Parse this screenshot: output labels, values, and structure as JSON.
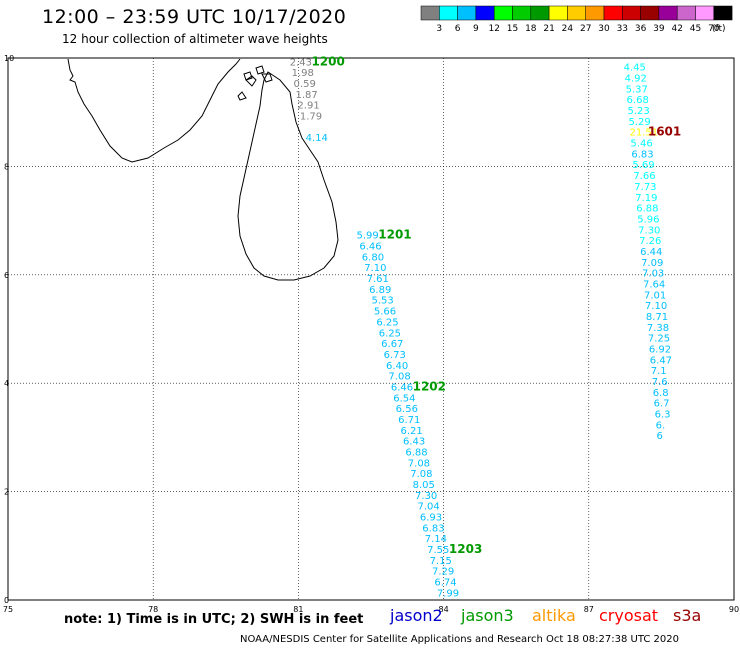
{
  "title": "12:00 – 23:59 UTC 10/17/2020",
  "subtitle": "12 hour collection of altimeter wave heights",
  "legend": {
    "unit": "(ft)",
    "colors": [
      "#808080",
      "#00ffff",
      "#00bfff",
      "#0000ff",
      "#00ff00",
      "#00cc00",
      "#009900",
      "#ffff00",
      "#ffcc00",
      "#ff9900",
      "#ff0000",
      "#cc0000",
      "#990000",
      "#990099",
      "#cc66cc",
      "#ff99ff",
      "#000000"
    ],
    "labels": [
      "3",
      "6",
      "9",
      "12",
      "15",
      "18",
      "21",
      "24",
      "27",
      "30",
      "33",
      "36",
      "39",
      "42",
      "45",
      "70"
    ]
  },
  "axes": {
    "x_ticks": [
      "75",
      "78",
      "81",
      "84",
      "87",
      "90"
    ],
    "y_ticks": [
      "10",
      "8",
      "6",
      "4",
      "2",
      "0"
    ],
    "lon_range": [
      75,
      90
    ],
    "lat_range": [
      0,
      10
    ]
  },
  "note": "note: 1) Time is in UTC; 2) SWH is in feet",
  "satellites": [
    {
      "name": "jason2",
      "color": "#0000cc"
    },
    {
      "name": "jason3",
      "color": "#009900"
    },
    {
      "name": "altika",
      "color": "#ff9900"
    },
    {
      "name": "cryosat",
      "color": "#ff0000"
    },
    {
      "name": "s3a",
      "color": "#990000"
    }
  ],
  "footer": "NOAA/NESDIS Center for Satellite Applications and Research   Oct 18 08:27:38 UTC 2020",
  "tracks": [
    {
      "time": "1200",
      "time_color": "#009900",
      "obs": [
        {
          "v": "2.43",
          "c": "#808080",
          "lon": 80.82,
          "lat": 9.94
        },
        {
          "v": "1.98",
          "c": "#808080",
          "lon": 80.86,
          "lat": 9.74
        },
        {
          "v": "0.59",
          "c": "#808080",
          "lon": 80.9,
          "lat": 9.54
        },
        {
          "v": "1.87",
          "c": "#808080",
          "lon": 80.94,
          "lat": 9.34
        },
        {
          "v": "2.91",
          "c": "#808080",
          "lon": 80.98,
          "lat": 9.14
        },
        {
          "v": "1.79",
          "c": "#808080",
          "lon": 81.03,
          "lat": 8.94
        },
        {
          "v": "4.14",
          "c": "#00bfff",
          "lon": 81.15,
          "lat": 8.54
        }
      ]
    },
    {
      "time": "1201",
      "time_color": "#009900",
      "obs": [
        {
          "v": "5.99",
          "c": "#00bfff",
          "lon": 82.2,
          "lat": 6.74
        },
        {
          "v": "6.46",
          "c": "#00bfff",
          "lon": 82.26,
          "lat": 6.54
        },
        {
          "v": "6.80",
          "c": "#00bfff",
          "lon": 82.31,
          "lat": 6.34
        },
        {
          "v": "7.10",
          "c": "#00bfff",
          "lon": 82.36,
          "lat": 6.14
        },
        {
          "v": "7.61",
          "c": "#00bfff",
          "lon": 82.41,
          "lat": 5.94
        },
        {
          "v": "6.89",
          "c": "#00bfff",
          "lon": 82.46,
          "lat": 5.74
        },
        {
          "v": "5.53",
          "c": "#00bfff",
          "lon": 82.51,
          "lat": 5.54
        },
        {
          "v": "5.66",
          "c": "#00bfff",
          "lon": 82.56,
          "lat": 5.34
        },
        {
          "v": "6.25",
          "c": "#00bfff",
          "lon": 82.61,
          "lat": 5.14
        },
        {
          "v": "6.25",
          "c": "#00bfff",
          "lon": 82.66,
          "lat": 4.94
        },
        {
          "v": "6.67",
          "c": "#00bfff",
          "lon": 82.71,
          "lat": 4.74
        },
        {
          "v": "6.73",
          "c": "#00bfff",
          "lon": 82.76,
          "lat": 4.54
        },
        {
          "v": "6.40",
          "c": "#00bfff",
          "lon": 82.81,
          "lat": 4.34
        },
        {
          "v": "7.08",
          "c": "#00bfff",
          "lon": 82.86,
          "lat": 4.14
        }
      ]
    },
    {
      "time": "1202",
      "time_color": "#009900",
      "obs": [
        {
          "v": "6.46",
          "c": "#00bfff",
          "lon": 82.91,
          "lat": 3.94
        },
        {
          "v": "6.54",
          "c": "#00bfff",
          "lon": 82.96,
          "lat": 3.74
        },
        {
          "v": "6.56",
          "c": "#00bfff",
          "lon": 83.01,
          "lat": 3.54
        },
        {
          "v": "6.71",
          "c": "#00bfff",
          "lon": 83.06,
          "lat": 3.34
        },
        {
          "v": "6.21",
          "c": "#00bfff",
          "lon": 83.11,
          "lat": 3.14
        },
        {
          "v": "6.43",
          "c": "#00bfff",
          "lon": 83.16,
          "lat": 2.94
        },
        {
          "v": "6.88",
          "c": "#00bfff",
          "lon": 83.21,
          "lat": 2.74
        },
        {
          "v": "7.08",
          "c": "#00bfff",
          "lon": 83.26,
          "lat": 2.54
        },
        {
          "v": "7.08",
          "c": "#00bfff",
          "lon": 83.31,
          "lat": 2.34
        },
        {
          "v": "8.05",
          "c": "#00bfff",
          "lon": 83.36,
          "lat": 2.14
        },
        {
          "v": "7.30",
          "c": "#00bfff",
          "lon": 83.41,
          "lat": 1.94
        },
        {
          "v": "7.04",
          "c": "#00bfff",
          "lon": 83.46,
          "lat": 1.74
        },
        {
          "v": "6.93",
          "c": "#00bfff",
          "lon": 83.51,
          "lat": 1.54
        },
        {
          "v": "6.83",
          "c": "#00bfff",
          "lon": 83.56,
          "lat": 1.34
        },
        {
          "v": "7.14",
          "c": "#00bfff",
          "lon": 83.61,
          "lat": 1.14
        }
      ]
    },
    {
      "time": "1203",
      "time_color": "#009900",
      "obs": [
        {
          "v": "7.55",
          "c": "#00bfff",
          "lon": 83.66,
          "lat": 0.94
        },
        {
          "v": "7.15",
          "c": "#00bfff",
          "lon": 83.71,
          "lat": 0.74
        },
        {
          "v": "7.29",
          "c": "#00bfff",
          "lon": 83.76,
          "lat": 0.54
        },
        {
          "v": "6.74",
          "c": "#00bfff",
          "lon": 83.81,
          "lat": 0.34
        },
        {
          "v": "7.99",
          "c": "#00bfff",
          "lon": 83.86,
          "lat": 0.14
        }
      ]
    },
    {
      "time": "1601",
      "time_color": "#990000",
      "obs": [
        {
          "v": "4.45",
          "c": "#00ffff",
          "lon": 87.72,
          "lat": 9.84
        },
        {
          "v": "4.92",
          "c": "#00ffff",
          "lon": 87.74,
          "lat": 9.64
        },
        {
          "v": "5.37",
          "c": "#00ffff",
          "lon": 87.76,
          "lat": 9.44
        },
        {
          "v": "6.68",
          "c": "#00ffff",
          "lon": 87.78,
          "lat": 9.24
        },
        {
          "v": "5.23",
          "c": "#00ffff",
          "lon": 87.8,
          "lat": 9.04
        },
        {
          "v": "5.29",
          "c": "#00ffff",
          "lon": 87.82,
          "lat": 8.84
        },
        {
          "v": "21.51",
          "c": "#ffff00",
          "lon": 87.84,
          "lat": 8.64
        },
        {
          "v": "5.46",
          "c": "#00ffff",
          "lon": 87.86,
          "lat": 8.44
        },
        {
          "v": "6.83",
          "c": "#00bfff",
          "lon": 87.88,
          "lat": 8.24
        },
        {
          "v": "5.69",
          "c": "#00ffff",
          "lon": 87.9,
          "lat": 8.04
        },
        {
          "v": "7.66",
          "c": "#00ffff",
          "lon": 87.92,
          "lat": 7.84
        },
        {
          "v": "7.73",
          "c": "#00ffff",
          "lon": 87.94,
          "lat": 7.64
        },
        {
          "v": "7.19",
          "c": "#00ffff",
          "lon": 87.96,
          "lat": 7.44
        },
        {
          "v": "6.88",
          "c": "#00ffff",
          "lon": 87.98,
          "lat": 7.24
        },
        {
          "v": "5.96",
          "c": "#00ffff",
          "lon": 88.0,
          "lat": 7.04
        },
        {
          "v": "7.30",
          "c": "#00ffff",
          "lon": 88.02,
          "lat": 6.84
        },
        {
          "v": "7.26",
          "c": "#00ffff",
          "lon": 88.04,
          "lat": 6.64
        },
        {
          "v": "6.44",
          "c": "#00bfff",
          "lon": 88.06,
          "lat": 6.44
        },
        {
          "v": "7.09",
          "c": "#00bfff",
          "lon": 88.08,
          "lat": 6.24
        },
        {
          "v": "7.03",
          "c": "#00bfff",
          "lon": 88.1,
          "lat": 6.04
        },
        {
          "v": "7.64",
          "c": "#00bfff",
          "lon": 88.12,
          "lat": 5.84
        },
        {
          "v": "7.01",
          "c": "#00bfff",
          "lon": 88.14,
          "lat": 5.64
        },
        {
          "v": "7.10",
          "c": "#00bfff",
          "lon": 88.16,
          "lat": 5.44
        },
        {
          "v": "8.71",
          "c": "#00bfff",
          "lon": 88.18,
          "lat": 5.24
        },
        {
          "v": "7.38",
          "c": "#00bfff",
          "lon": 88.2,
          "lat": 5.04
        },
        {
          "v": "7.25",
          "c": "#00bfff",
          "lon": 88.22,
          "lat": 4.84
        },
        {
          "v": "6.92",
          "c": "#00bfff",
          "lon": 88.24,
          "lat": 4.64
        },
        {
          "v": "6.47",
          "c": "#00bfff",
          "lon": 88.26,
          "lat": 4.44
        },
        {
          "v": "7.1",
          "c": "#00bfff",
          "lon": 88.28,
          "lat": 4.24
        },
        {
          "v": "7.6",
          "c": "#00bfff",
          "lon": 88.3,
          "lat": 4.04
        },
        {
          "v": "6.8",
          "c": "#00bfff",
          "lon": 88.32,
          "lat": 3.84
        },
        {
          "v": "6.7",
          "c": "#00bfff",
          "lon": 88.34,
          "lat": 3.64
        },
        {
          "v": "6.3",
          "c": "#00bfff",
          "lon": 88.36,
          "lat": 3.44
        },
        {
          "v": "6.",
          "c": "#00bfff",
          "lon": 88.38,
          "lat": 3.24
        },
        {
          "v": "6",
          "c": "#00bfff",
          "lon": 88.4,
          "lat": 3.04
        }
      ]
    }
  ]
}
